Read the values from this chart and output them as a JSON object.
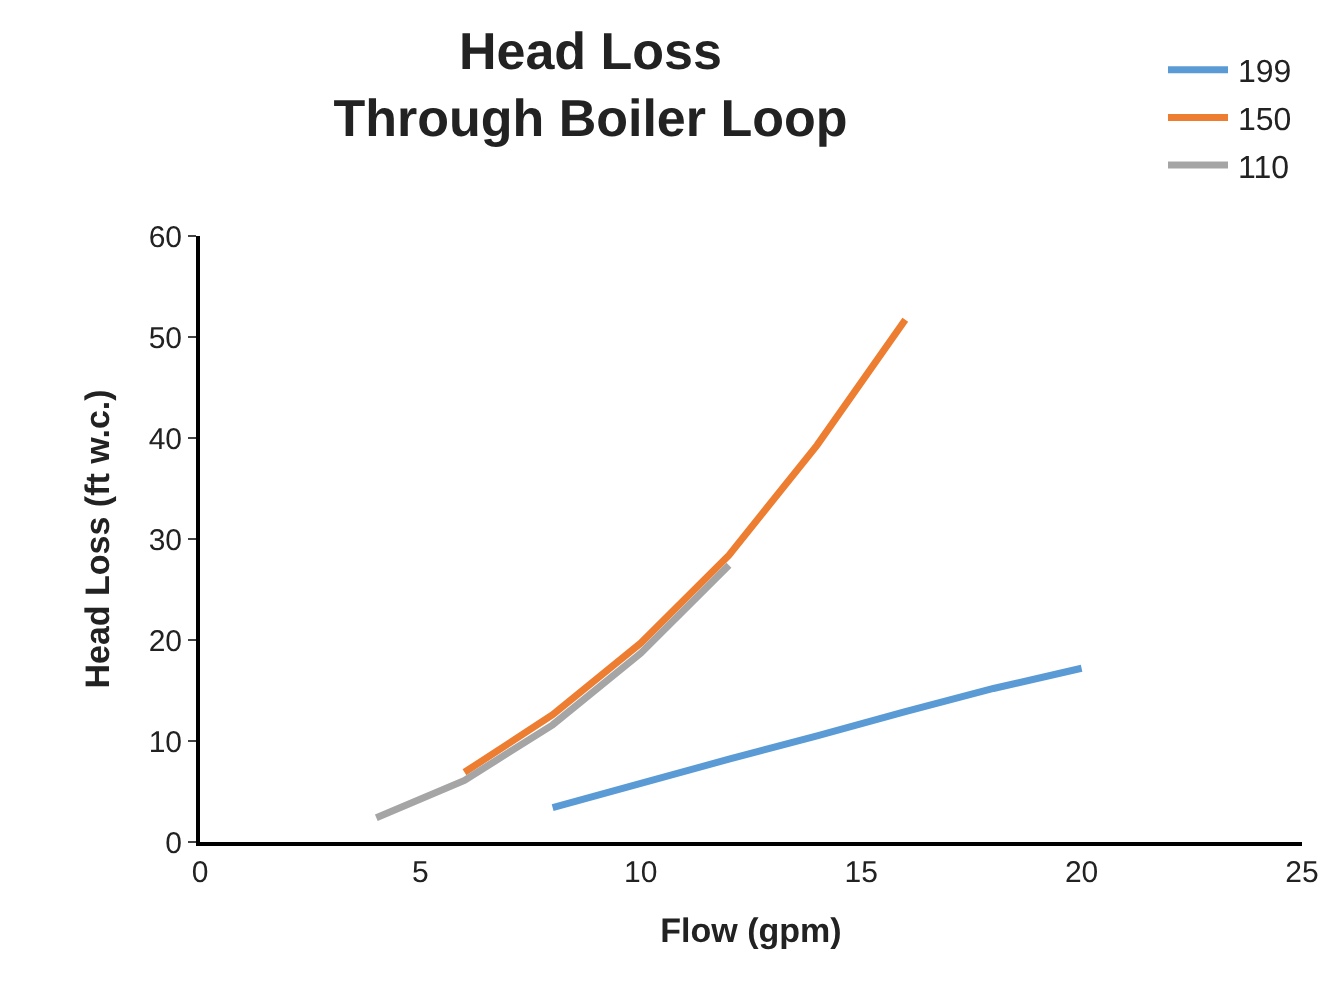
{
  "chart_data": {
    "type": "line",
    "title": "Head Loss\nThrough Boiler Loop",
    "xlabel": "Flow (gpm)",
    "ylabel": "Head Loss (ft w.c.)",
    "series": [
      {
        "name": "199",
        "color": "#5b9bd5",
        "x": [
          8,
          10,
          12,
          14,
          16,
          18,
          20
        ],
        "values": [
          3.4,
          5.8,
          8.2,
          10.5,
          12.9,
          15.2,
          17.2
        ]
      },
      {
        "name": "150",
        "color": "#ed7d31",
        "x": [
          6,
          8,
          10,
          12,
          14,
          16
        ],
        "values": [
          6.9,
          12.6,
          19.7,
          28.4,
          39.3,
          51.7
        ]
      },
      {
        "name": "110",
        "color": "#a5a5a5",
        "x": [
          4,
          6,
          8,
          10,
          12
        ],
        "values": [
          2.4,
          6.1,
          11.6,
          18.7,
          27.4
        ]
      }
    ],
    "xlim": [
      0,
      25
    ],
    "xticks": [
      0,
      5,
      10,
      15,
      20,
      25
    ],
    "ylim": [
      0,
      60
    ],
    "yticks": [
      0,
      10,
      20,
      30,
      40,
      50,
      60
    ],
    "grid": false,
    "legend": "top right",
    "marker": "none",
    "line_style": "solid"
  }
}
